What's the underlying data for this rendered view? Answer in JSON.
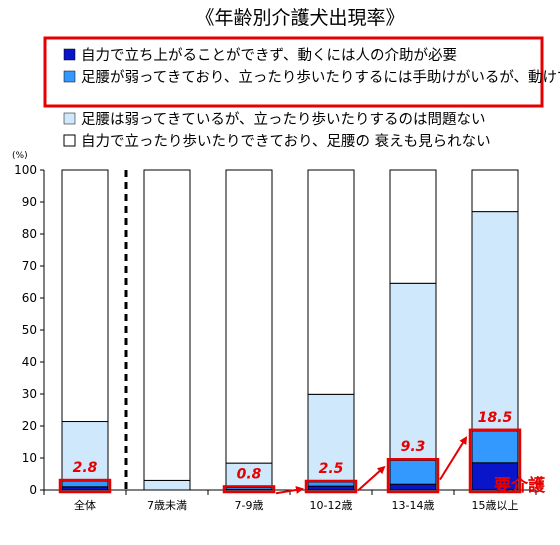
{
  "chart_data": {
    "type": "bar",
    "stacked": true,
    "title": "《年齢別介護犬出現率》",
    "y_unit": "(%)",
    "ylim": [
      0,
      100
    ],
    "yticks": [
      0,
      10,
      20,
      30,
      40,
      50,
      60,
      70,
      80,
      90,
      100
    ],
    "categories": [
      "全体",
      "7歳未満",
      "7-9歳",
      "10-12歳",
      "13-14歳",
      "15歳以上"
    ],
    "series": [
      {
        "name": "自力で立ち上がることができず、動くには人の介助が必要",
        "color": "#0a14c8",
        "values": [
          1.0,
          0.0,
          0.2,
          1.2,
          1.8,
          8.5
        ]
      },
      {
        "name": "足腰が弱ってきており、立ったり歩いたりするには手助けがいるが、動けている",
        "color": "#3399ff",
        "values": [
          1.8,
          0.0,
          0.6,
          1.3,
          7.5,
          10.0
        ]
      },
      {
        "name": "足腰は弱ってきているが、立ったり歩いたりするのは問題ない",
        "color": "#cfe8fb",
        "values": [
          18.6,
          3.0,
          7.6,
          27.4,
          55.3,
          68.5
        ]
      },
      {
        "name": "自力で立ったり歩いたりできており、足腰の 衰えも見られない",
        "color": "#ffffff",
        "values": [
          78.6,
          97.0,
          91.6,
          70.1,
          35.4,
          13.0
        ]
      }
    ],
    "data_labels": [
      "2.8",
      "",
      "0.8",
      "2.5",
      "9.3",
      "18.5"
    ],
    "annotation": "要介護",
    "legend_position": "top",
    "grid": false
  }
}
